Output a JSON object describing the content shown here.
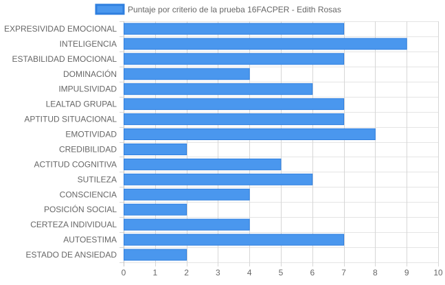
{
  "chart_data": {
    "type": "bar",
    "orientation": "horizontal",
    "categories": [
      "EXPRESIVIDAD EMOCIONAL",
      "INTELIGENCIA",
      "ESTABILIDAD EMOCIONAL",
      "DOMINACIÓN",
      "IMPULSIVIDAD",
      "LEALTAD GRUPAL",
      "APTITUD SITUACIONAL",
      "EMOTIVIDAD",
      "CREDIBILIDAD",
      "ACTITUD COGNITIVA",
      "SUTILEZA",
      "CONSCIENCIA",
      "POSICIÓN SOCIAL",
      "CERTEZA INDIVIDUAL",
      "AUTOESTIMA",
      "ESTADO DE ANSIEDAD"
    ],
    "series": [
      {
        "name": "Puntaje por criterio de la prueba 16FACPER - Edith Rosas",
        "values": [
          7,
          9,
          7,
          4,
          6,
          7,
          7,
          8,
          2,
          5,
          6,
          4,
          2,
          4,
          7,
          2
        ],
        "color": "#4A97EE",
        "border_color": "#2F7FDF"
      }
    ],
    "xlim": [
      0,
      10
    ],
    "xticks": [
      0,
      1,
      2,
      3,
      4,
      5,
      6,
      7,
      8,
      9,
      10
    ],
    "grid": true,
    "legend_position": "top",
    "title": "",
    "xlabel": "",
    "ylabel": ""
  }
}
